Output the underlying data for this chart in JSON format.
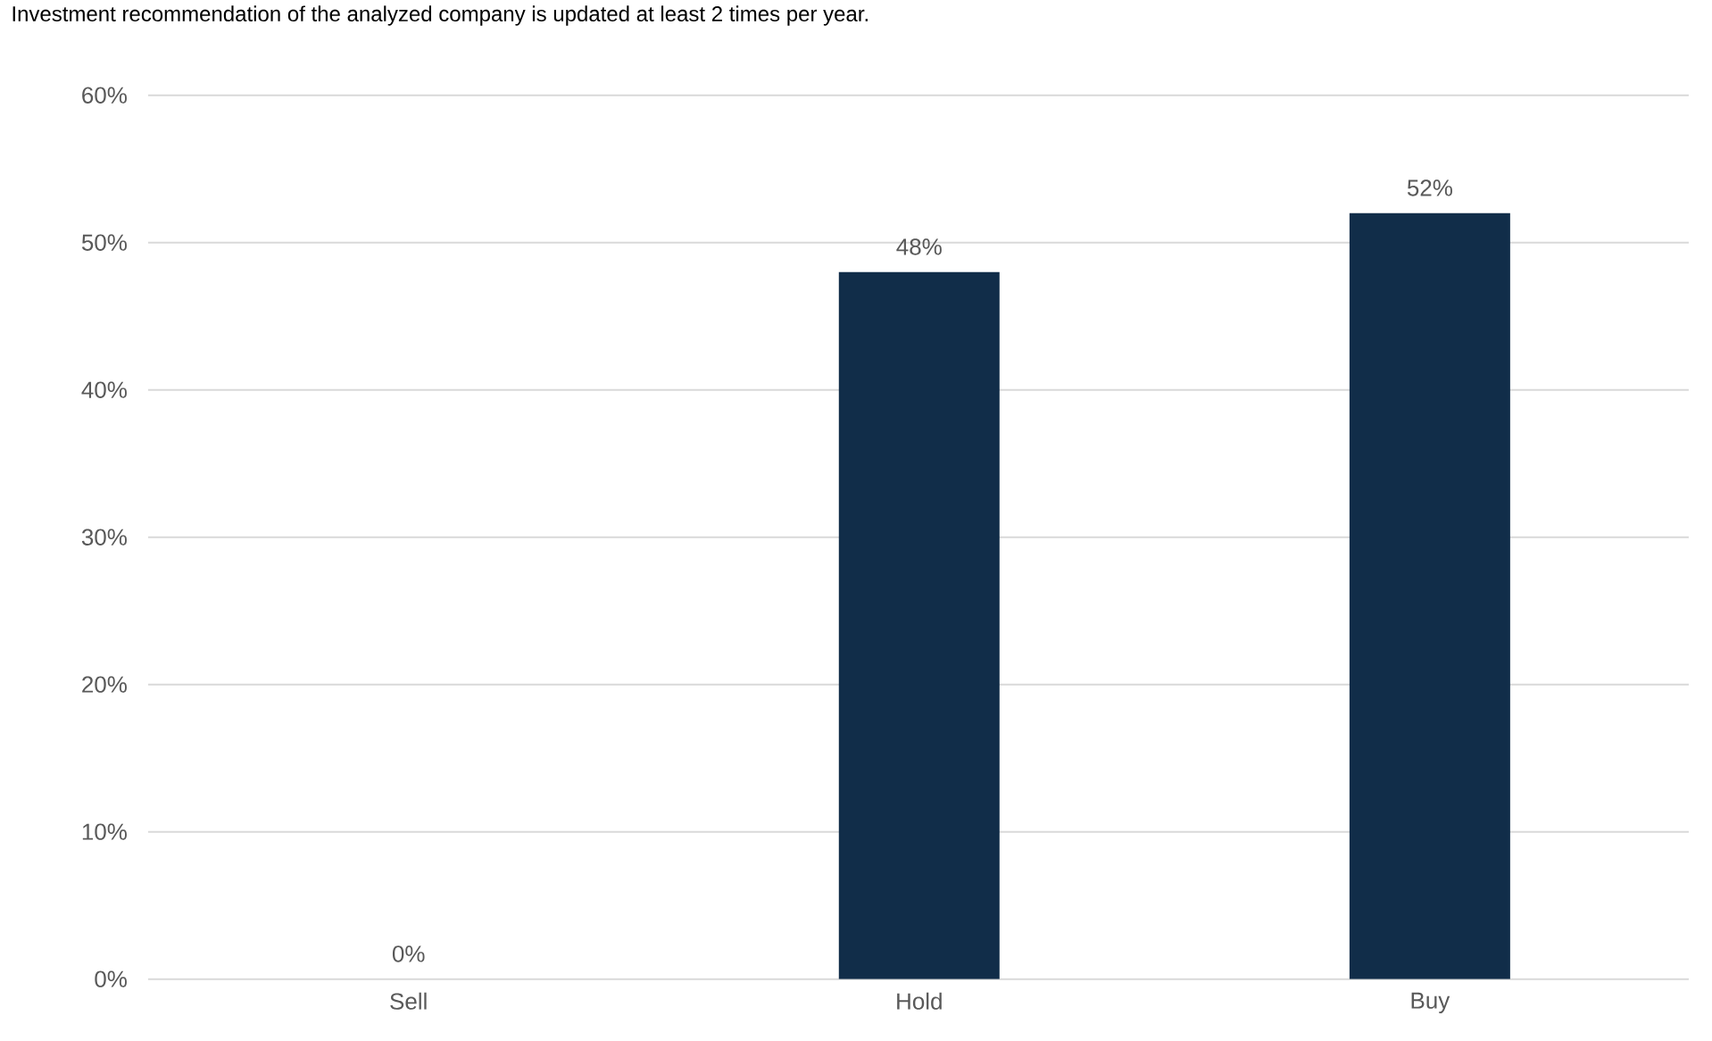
{
  "chart_data": {
    "type": "bar",
    "annotations": [
      "Investment recommendation of the analyzed company is updated at least 2 times per year."
    ],
    "categories": [
      "Sell",
      "Hold",
      "Buy"
    ],
    "values": [
      0,
      48,
      52
    ],
    "value_labels": [
      "0%",
      "48%",
      "52%"
    ],
    "color": "#112d49",
    "ylim": [
      0,
      60
    ],
    "yticks": [
      {
        "value": 0,
        "label": "0%"
      },
      {
        "value": 10,
        "label": "10%"
      },
      {
        "value": 20,
        "label": "20%"
      },
      {
        "value": 30,
        "label": "30%"
      },
      {
        "value": 40,
        "label": "40%"
      },
      {
        "value": 50,
        "label": "50%"
      },
      {
        "value": 60,
        "label": "60%"
      }
    ],
    "grid": "y"
  }
}
